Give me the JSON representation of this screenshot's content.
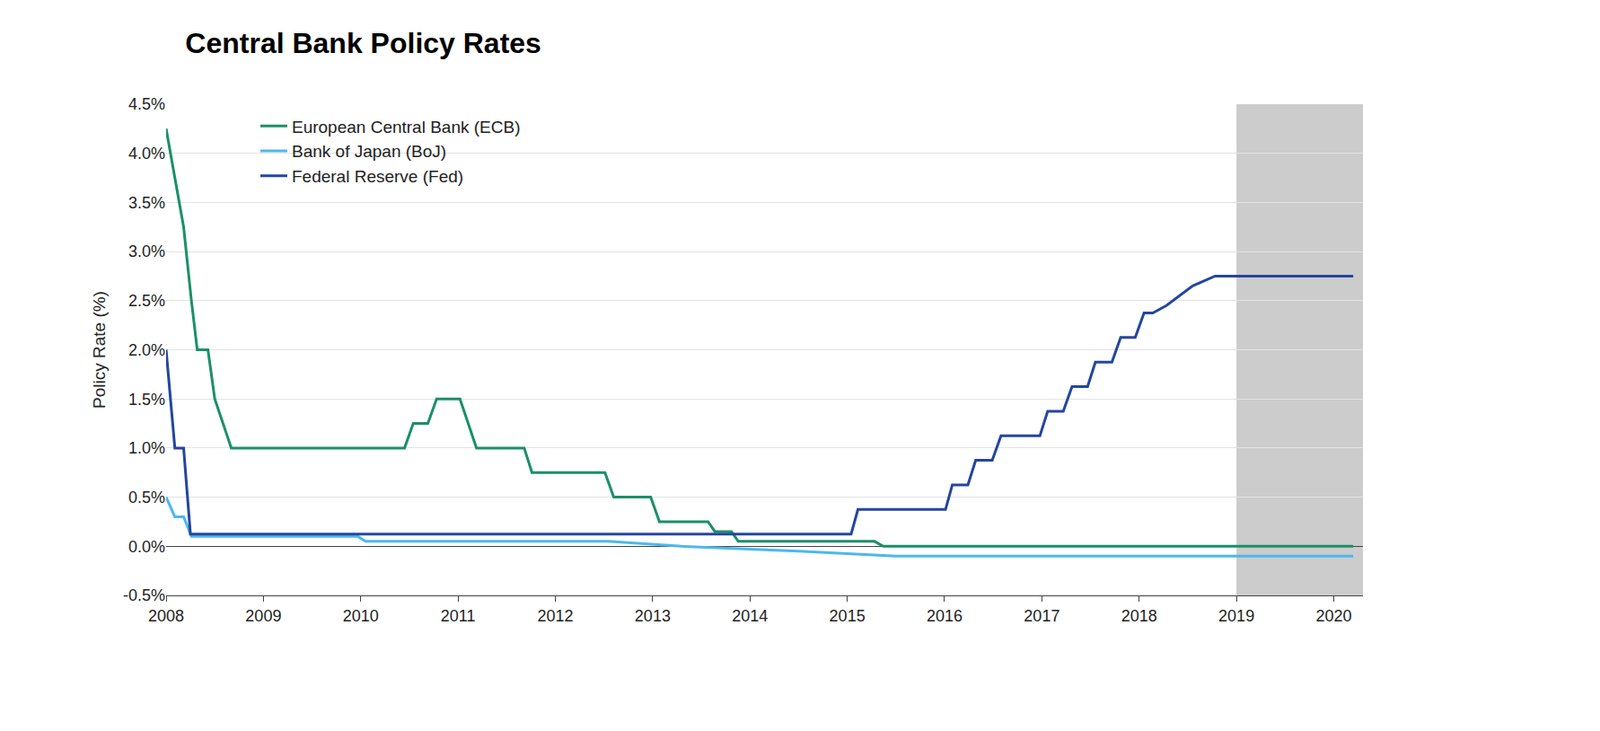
{
  "chart_data": {
    "type": "line",
    "title": "Central Bank Policy Rates",
    "y_label": "Policy Rate (%)",
    "xlim": [
      2008,
      2020.3
    ],
    "xticks": [
      2008,
      2009,
      2010,
      2011,
      2012,
      2013,
      2014,
      2015,
      2016,
      2017,
      2018,
      2019,
      2020
    ],
    "ylim": [
      -0.5,
      4.5
    ],
    "yticks": [
      {
        "value": -0.5,
        "label": "-0.5%"
      },
      {
        "value": 0,
        "label": "0.0%"
      },
      {
        "value": 0.5,
        "label": "0.5%"
      },
      {
        "value": 1,
        "label": "1.0%"
      },
      {
        "value": 1.5,
        "label": "1.5%"
      },
      {
        "value": 2,
        "label": "2.0%"
      },
      {
        "value": 2.5,
        "label": "2.5%"
      },
      {
        "value": 3,
        "label": "3.0%"
      },
      {
        "value": 3.5,
        "label": "3.5%"
      },
      {
        "value": 4,
        "label": "4.0%"
      },
      {
        "value": 4.5,
        "label": "4.5%"
      }
    ],
    "shaded_x": [
      2019,
      2020.3
    ],
    "grid": "y",
    "legend": "top left",
    "series": [
      {
        "name": "European Central Bank (ECB)",
        "color": "#1b8f6a",
        "x": [
          2008,
          2008.18,
          2008.26,
          2008.32,
          2008.43,
          2008.5,
          2008.67,
          2010.45,
          2010.54,
          2010.69,
          2010.78,
          2011.02,
          2011.19,
          2011.68,
          2011.76,
          2012.51,
          2012.6,
          2012.98,
          2013.07,
          2013.57,
          2013.64,
          2013.81,
          2013.88,
          2015.28,
          2015.37,
          2020.2
        ],
        "values": [
          4.25,
          3.25,
          2.5,
          2.0,
          2.0,
          1.5,
          1.0,
          1.0,
          1.25,
          1.25,
          1.5,
          1.5,
          1.0,
          1.0,
          0.75,
          0.75,
          0.5,
          0.5,
          0.25,
          0.25,
          0.15,
          0.15,
          0.05,
          0.05,
          0.0,
          0.0
        ]
      },
      {
        "name": "Bank of Japan (BoJ)",
        "color": "#4cb8ec",
        "x": [
          2008,
          2008.09,
          2008.18,
          2008.26,
          2009.97,
          2010.05,
          2012.54,
          2013.3,
          2014.5,
          2015.5,
          2020.2
        ],
        "values": [
          0.5,
          0.3,
          0.3,
          0.1,
          0.1,
          0.05,
          0.05,
          0.0,
          -0.05,
          -0.1,
          -0.1
        ]
      },
      {
        "name": "Federal Reserve (Fed)",
        "color": "#23469f",
        "x": [
          2008,
          2008.09,
          2008.18,
          2008.25,
          2015.04,
          2015.11,
          2016.01,
          2016.08,
          2016.24,
          2016.32,
          2016.49,
          2016.58,
          2016.98,
          2017.06,
          2017.22,
          2017.31,
          2017.47,
          2017.55,
          2017.72,
          2017.81,
          2017.96,
          2018.05,
          2018.14,
          2018.28,
          2018.55,
          2018.78,
          2020.2
        ],
        "values": [
          2.0,
          1.0,
          1.0,
          0.125,
          0.125,
          0.375,
          0.375,
          0.625,
          0.625,
          0.875,
          0.875,
          1.125,
          1.125,
          1.375,
          1.375,
          1.625,
          1.625,
          1.875,
          1.875,
          2.125,
          2.125,
          2.375,
          2.375,
          2.45,
          2.65,
          2.75,
          2.75
        ]
      }
    ]
  }
}
